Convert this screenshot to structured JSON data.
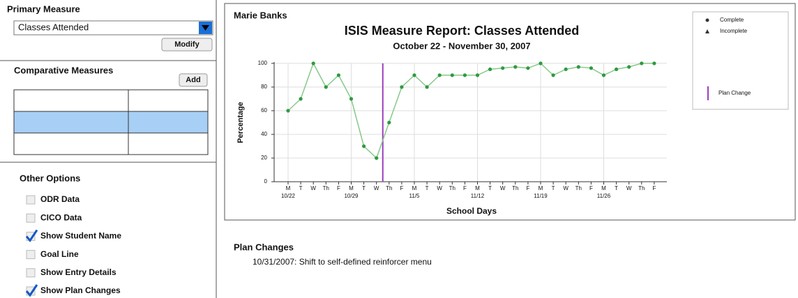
{
  "primary_measure": {
    "heading": "Primary Measure",
    "selected": "Classes Attended",
    "button": "Modify"
  },
  "comparative_measures": {
    "heading": "Comparative Measures",
    "button": "Add"
  },
  "other_options": {
    "heading": "Other Options",
    "options": [
      {
        "label": "ODR Data",
        "checked": false
      },
      {
        "label": "CICO Data",
        "checked": false
      },
      {
        "label": "Show Student Name",
        "checked": true
      },
      {
        "label": "Goal Line",
        "checked": false
      },
      {
        "label": "Show Entry Details",
        "checked": false
      },
      {
        "label": "Show Plan Changes",
        "checked": true
      }
    ]
  },
  "chart_data": {
    "type": "line",
    "student": "Marie Banks",
    "title": "ISIS Measure Report: Classes Attended",
    "subtitle": "October 22 - November 30, 2007",
    "y_label": "Percentage",
    "x_label": "School Days",
    "categories": [
      "M",
      "T",
      "W",
      "Th",
      "F",
      "M",
      "T",
      "W",
      "Th",
      "F",
      "M",
      "T",
      "W",
      "Th",
      "F",
      "M",
      "T",
      "W",
      "Th",
      "F",
      "M",
      "T",
      "W",
      "Th",
      "F",
      "M",
      "T",
      "W",
      "Th",
      "F"
    ],
    "date_labels": [
      "10/22",
      null,
      null,
      null,
      null,
      "10/29",
      null,
      null,
      null,
      null,
      "11/5",
      null,
      null,
      null,
      null,
      "11/12",
      null,
      null,
      null,
      null,
      "11/19",
      null,
      null,
      null,
      null,
      "11/26",
      null,
      null,
      null,
      null
    ],
    "series": [
      {
        "name": "Complete",
        "color": "#2e9a3f",
        "values": [
          60,
          70,
          100,
          80,
          90,
          70,
          30,
          20,
          50,
          80,
          90,
          80,
          90,
          90,
          90,
          90,
          95,
          96,
          97,
          96,
          100,
          90,
          95,
          97,
          96,
          90,
          95,
          97,
          100,
          100
        ]
      }
    ],
    "legend": [
      {
        "name": "Complete",
        "marker": "circle"
      },
      {
        "name": "Incomplete",
        "marker": "triangle"
      },
      {
        "name": "Plan Change",
        "marker": "line",
        "color": "#9b3fbf"
      }
    ],
    "plan_change_x": 7.5,
    "ylim": [
      0,
      100
    ],
    "yticks": [
      0,
      20,
      40,
      60,
      80,
      100
    ],
    "grid": true
  },
  "plan_changes": {
    "heading": "Plan Changes",
    "entries": [
      "10/31/2007: Shift to self-defined reinforcer menu"
    ]
  }
}
